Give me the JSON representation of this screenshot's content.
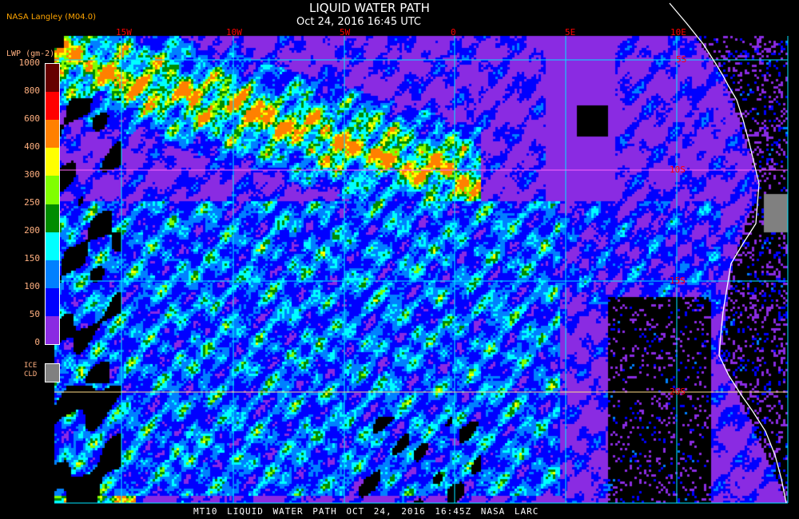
{
  "header": {
    "title": "LIQUID WATER PATH",
    "subtitle": "Oct 24, 2016 16:45 UTC",
    "source": "NASA Langley (M04.0)"
  },
  "map": {
    "longitude_labels": [
      "15W",
      "10W",
      "5W",
      "0",
      "5E",
      "10E"
    ],
    "latitude_labels": [
      "5S",
      "10S",
      "15S",
      "20S"
    ],
    "grid_color": "#00e5ff",
    "coastline_color": "#ffffff",
    "label_color": "#ff0000"
  },
  "legend": {
    "title": "LWP (gm-2)",
    "ticks": [
      "0",
      "50",
      "100",
      "150",
      "200",
      "250",
      "300",
      "400",
      "600",
      "800",
      "1000"
    ],
    "colors": [
      "#8a2be2",
      "#0000ff",
      "#0080ff",
      "#00ffff",
      "#008c00",
      "#80ff00",
      "#ffff00",
      "#ff8000",
      "#ff0000",
      "#660000"
    ],
    "ice_label_1": "ICE",
    "ice_label_2": "CLD",
    "ice_color": "#808080"
  },
  "footer": {
    "caption": "MT10 LIQUID WATER PATH OCT 24, 2016 16:45Z NASA LARC"
  }
}
